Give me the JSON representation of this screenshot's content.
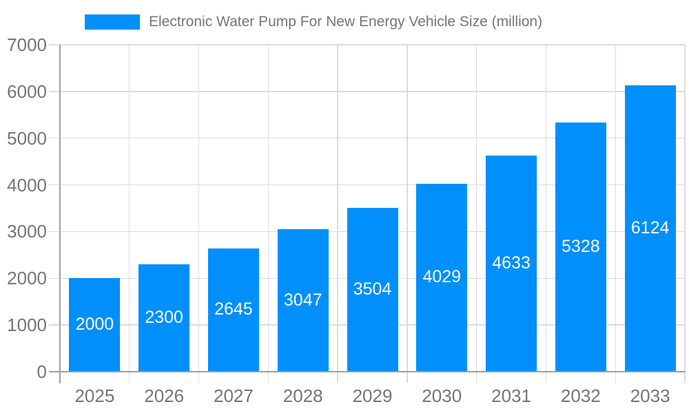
{
  "legend": {
    "label": "Electronic Water Pump For New Energy Vehicle Size (million)"
  },
  "chart_data": {
    "type": "bar",
    "title": "Electronic Water Pump For New Energy Vehicle Size (million)",
    "categories": [
      "2025",
      "2026",
      "2027",
      "2028",
      "2029",
      "2030",
      "2031",
      "2032",
      "2033"
    ],
    "values": [
      2000,
      2300,
      2645,
      3047,
      3504,
      4029,
      4633,
      5328,
      6124
    ],
    "xlabel": "",
    "ylabel": "",
    "ylim": [
      0,
      7000
    ],
    "yticks": [
      0,
      1000,
      2000,
      3000,
      4000,
      5000,
      6000,
      7000
    ],
    "grid": true,
    "legend_position": "top",
    "value_label_position": "inside-center"
  },
  "colors": {
    "bar": "#008FFB",
    "grid": "#DCDCDC",
    "axis": "#9E9E9E",
    "tick_label": "#757575",
    "legend_label": "#757575",
    "value_label": "#FFFFFF",
    "background": "#FFFFFF"
  }
}
